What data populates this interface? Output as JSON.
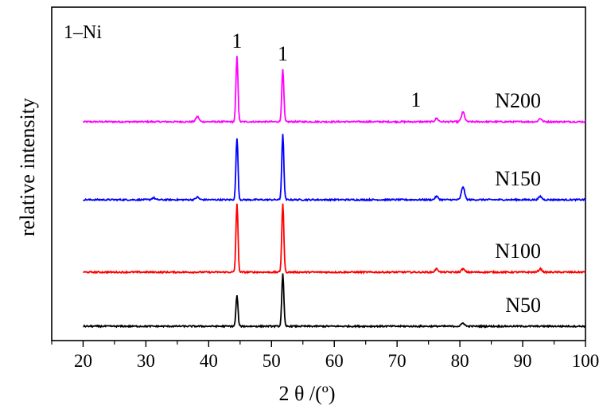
{
  "chart_data": {
    "type": "line",
    "xlabel": "2 θ /(º)",
    "ylabel": "relative intensity",
    "legend_text": "1–Ni",
    "xlim": [
      15,
      100
    ],
    "x_ticks": [
      20,
      30,
      40,
      50,
      60,
      70,
      80,
      90,
      100
    ],
    "peak_marker_labels": [
      {
        "x": 44.5,
        "label": "1"
      },
      {
        "x": 51.8,
        "label": "1"
      },
      {
        "x": 76.3,
        "label": "1"
      }
    ],
    "series": [
      {
        "name": "N200",
        "color": "#ff00ff",
        "peaks": [
          [
            38.2,
            0.08
          ],
          [
            44.5,
            1.0
          ],
          [
            51.8,
            0.8
          ],
          [
            76.3,
            0.05
          ],
          [
            80.5,
            0.15
          ],
          [
            92.8,
            0.05
          ]
        ]
      },
      {
        "name": "N150",
        "color": "#0000ff",
        "peaks": [
          [
            31.2,
            0.03
          ],
          [
            38.2,
            0.04
          ],
          [
            44.5,
            0.95
          ],
          [
            51.8,
            1.0
          ],
          [
            76.3,
            0.05
          ],
          [
            80.5,
            0.2
          ],
          [
            92.8,
            0.05
          ]
        ]
      },
      {
        "name": "N100",
        "color": "#ff0000",
        "peaks": [
          [
            44.5,
            1.05
          ],
          [
            51.8,
            1.05
          ],
          [
            76.3,
            0.05
          ],
          [
            80.5,
            0.05
          ],
          [
            92.8,
            0.05
          ]
        ]
      },
      {
        "name": "N50",
        "color": "#000000",
        "peaks": [
          [
            44.5,
            0.47
          ],
          [
            51.8,
            0.8
          ],
          [
            80.5,
            0.05
          ]
        ]
      }
    ]
  }
}
